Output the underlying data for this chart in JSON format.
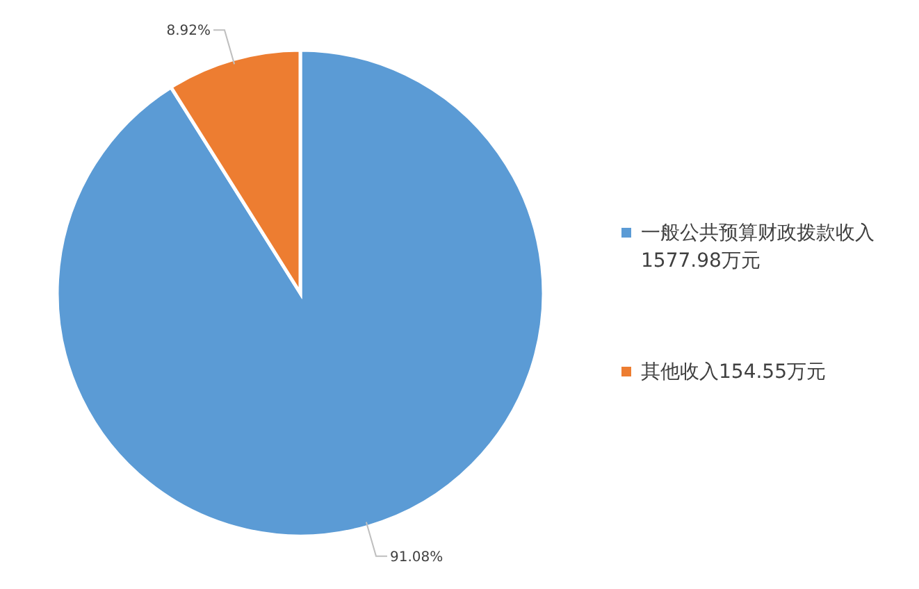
{
  "chart_data": {
    "type": "pie",
    "categories": [
      "一般公共预算财政拨款收入1577.98万元",
      "其他收入154.55万元"
    ],
    "values": [
      91.08,
      8.92
    ],
    "value_labels": [
      "91.08%",
      "8.92%"
    ],
    "colors": [
      "#5b9bd5",
      "#ed7d31"
    ],
    "legend": "right"
  }
}
